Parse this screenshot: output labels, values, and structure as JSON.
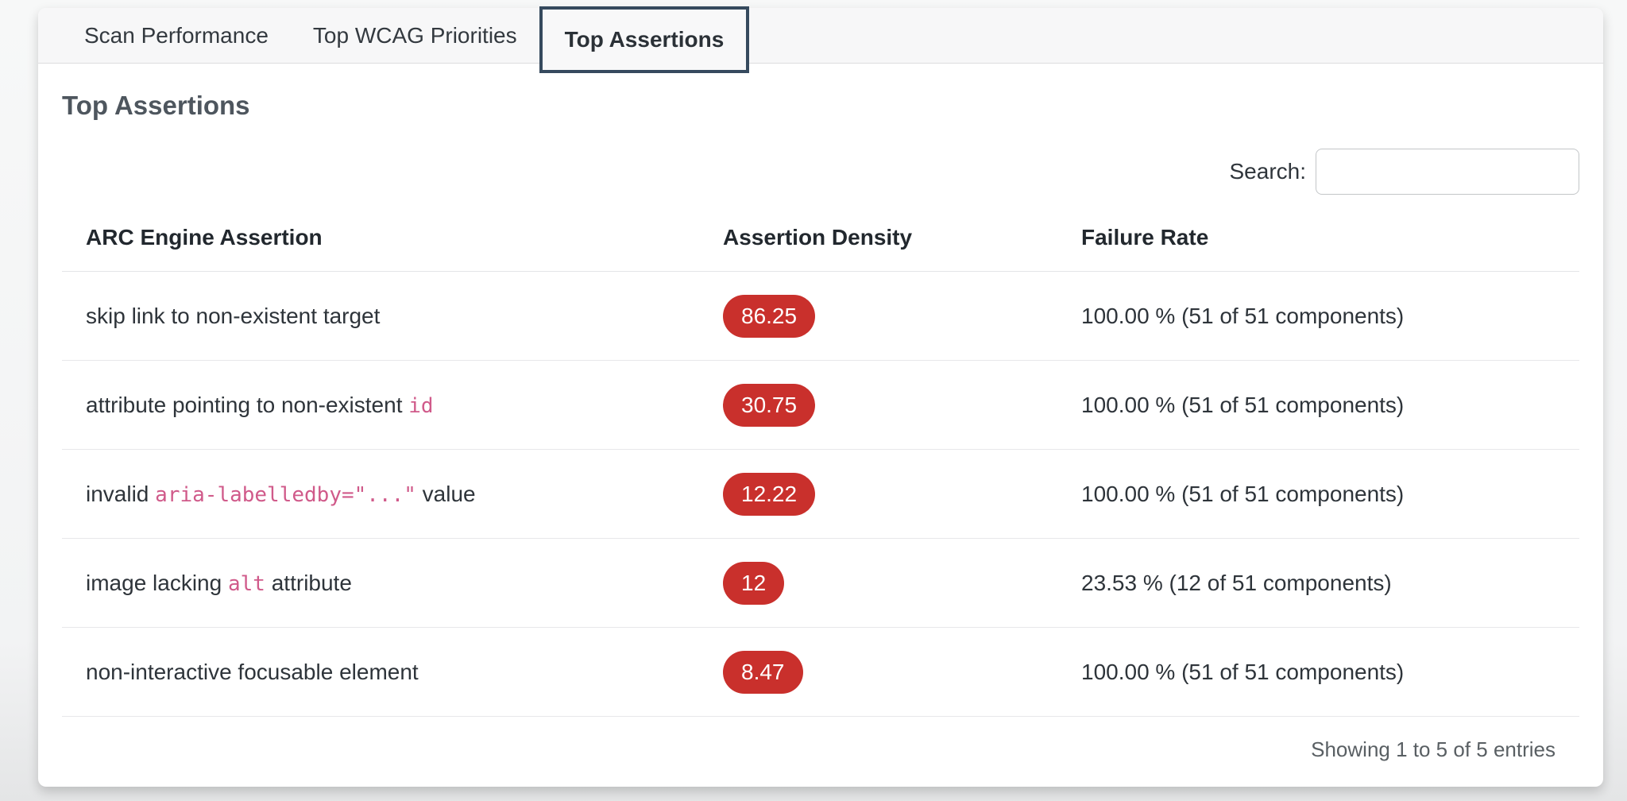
{
  "tabs": {
    "items": [
      {
        "label": "Scan Performance",
        "active": false
      },
      {
        "label": "Top WCAG Priorities",
        "active": false
      },
      {
        "label": "Top Assertions",
        "active": true
      }
    ]
  },
  "panel": {
    "title": "Top Assertions",
    "search": {
      "label": "Search:",
      "value": ""
    },
    "footer": {
      "status": "Showing 1 to 5 of 5 entries"
    }
  },
  "table": {
    "columns": [
      "ARC Engine Assertion",
      "Assertion Density",
      "Failure Rate"
    ],
    "rows": [
      {
        "assertion_parts": [
          {
            "text": "skip link to non-existent target",
            "code": false
          }
        ],
        "density": "86.25",
        "failure_rate": "100.00 % (51 of 51 components)"
      },
      {
        "assertion_parts": [
          {
            "text": "attribute pointing to non-existent ",
            "code": false
          },
          {
            "text": "id",
            "code": true
          }
        ],
        "density": "30.75",
        "failure_rate": "100.00 % (51 of 51 components)"
      },
      {
        "assertion_parts": [
          {
            "text": "invalid ",
            "code": false
          },
          {
            "text": "aria-labelledby=\"...\"",
            "code": true
          },
          {
            "text": " value",
            "code": false
          }
        ],
        "density": "12.22",
        "failure_rate": "100.00 % (51 of 51 components)"
      },
      {
        "assertion_parts": [
          {
            "text": "image lacking ",
            "code": false
          },
          {
            "text": "alt",
            "code": true
          },
          {
            "text": " attribute",
            "code": false
          }
        ],
        "density": "12",
        "failure_rate": "23.53 % (12 of 51 components)"
      },
      {
        "assertion_parts": [
          {
            "text": "non-interactive focusable element",
            "code": false
          }
        ],
        "density": "8.47",
        "failure_rate": "100.00 % (51 of 51 components)"
      }
    ]
  },
  "colors": {
    "badge_red": "#c9302c",
    "code_pink": "#d05a8a",
    "active_tab_border": "#364a5e"
  }
}
